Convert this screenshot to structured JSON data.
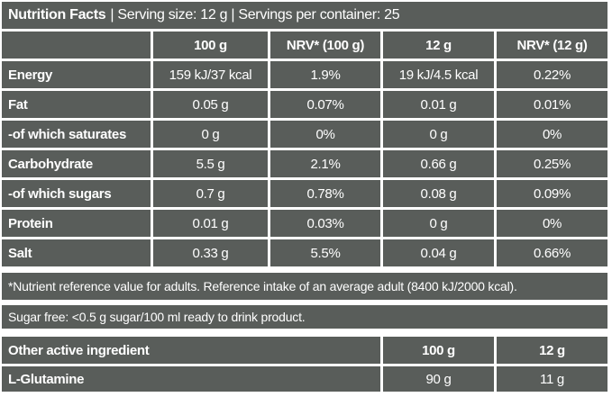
{
  "colors": {
    "table_bg": "#595d5a",
    "text": "#ffffff",
    "divider": "#ffffff"
  },
  "title": {
    "bold": "Nutrition Facts",
    "rest": "| Serving size: 12 g | Servings per container: 25"
  },
  "main_table": {
    "headers": [
      "",
      "100 g",
      "NRV* (100 g)",
      "12 g",
      "NRV* (12 g)"
    ],
    "rows": [
      {
        "label": "Energy",
        "values": [
          "159 kJ/37 kcal",
          "1.9%",
          "19 kJ/4.5 kcal",
          "0.22%"
        ]
      },
      {
        "label": "Fat",
        "values": [
          "0.05 g",
          "0.07%",
          "0.01 g",
          "0.01%"
        ]
      },
      {
        "label": "-of which saturates",
        "values": [
          "0 g",
          "0%",
          "0 g",
          "0%"
        ]
      },
      {
        "label": "Carbohydrate",
        "values": [
          "5.5 g",
          "2.1%",
          "0.66 g",
          "0.25%"
        ]
      },
      {
        "label": "-of which sugars",
        "values": [
          "0.7 g",
          "0.78%",
          "0.08 g",
          "0.09%"
        ]
      },
      {
        "label": "Protein",
        "values": [
          "0.01 g",
          "0.03%",
          "0 g",
          "0%"
        ]
      },
      {
        "label": "Salt",
        "values": [
          "0.33 g",
          "5.5%",
          "0.04 g",
          "0.66%"
        ]
      }
    ]
  },
  "footnotes": {
    "nrv": "*Nutrient reference value for adults. Reference intake of an average adult (8400 kJ/2000 kcal).",
    "sugar_free": "Sugar free: <0.5 g sugar/100 ml ready to drink product."
  },
  "other_table": {
    "headers": [
      "Other active ingredient",
      "100 g",
      "12 g"
    ],
    "rows": [
      {
        "label": "L-Glutamine",
        "values": [
          "90 g",
          "11 g"
        ]
      }
    ]
  }
}
